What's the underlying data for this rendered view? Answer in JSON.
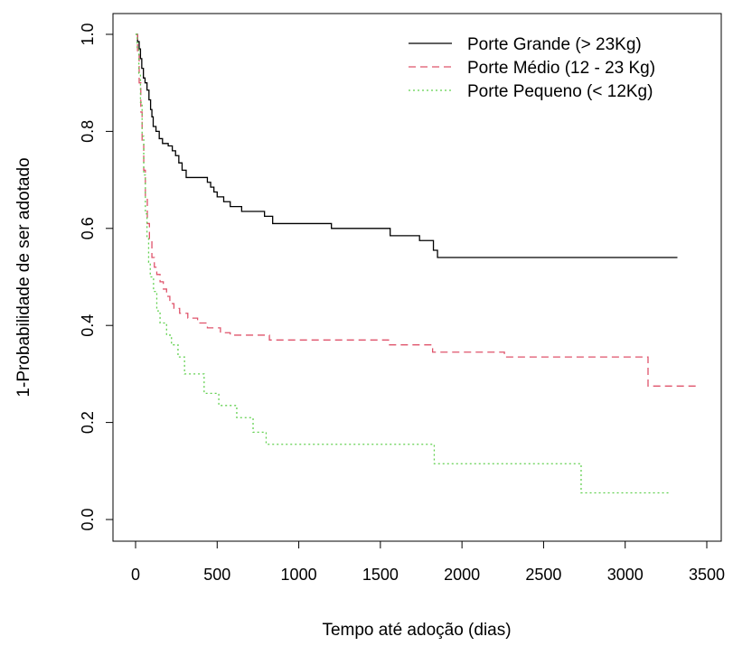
{
  "chart_data": {
    "type": "line",
    "step": true,
    "title": "",
    "xlabel": "Tempo até adoção (dias)",
    "ylabel": "1-Probabilidade de ser adotado",
    "xlim": [
      0,
      3500
    ],
    "ylim": [
      0,
      1
    ],
    "xticks": [
      0,
      500,
      1000,
      1500,
      2000,
      2500,
      3000,
      3500
    ],
    "yticks": [
      0.0,
      0.2,
      0.4,
      0.6,
      0.8,
      1.0
    ],
    "xtick_labels": [
      "0",
      "500",
      "1000",
      "1500",
      "2000",
      "2500",
      "3000",
      "3500"
    ],
    "ytick_labels": [
      "0.0",
      "0.2",
      "0.4",
      "0.6",
      "0.8",
      "1.0"
    ],
    "grid": false,
    "legend_position": "top-right",
    "series": [
      {
        "name": "Porte Grande (> 23Kg)",
        "color": "#000000",
        "dash": "solid",
        "points": [
          [
            0,
            1.0
          ],
          [
            12,
            0.985
          ],
          [
            22,
            0.97
          ],
          [
            30,
            0.95
          ],
          [
            38,
            0.93
          ],
          [
            48,
            0.91
          ],
          [
            58,
            0.9
          ],
          [
            70,
            0.885
          ],
          [
            82,
            0.865
          ],
          [
            92,
            0.845
          ],
          [
            100,
            0.83
          ],
          [
            108,
            0.81
          ],
          [
            125,
            0.8
          ],
          [
            145,
            0.785
          ],
          [
            165,
            0.775
          ],
          [
            200,
            0.77
          ],
          [
            225,
            0.76
          ],
          [
            245,
            0.75
          ],
          [
            265,
            0.735
          ],
          [
            285,
            0.72
          ],
          [
            310,
            0.705
          ],
          [
            440,
            0.695
          ],
          [
            460,
            0.685
          ],
          [
            480,
            0.675
          ],
          [
            500,
            0.665
          ],
          [
            540,
            0.655
          ],
          [
            580,
            0.645
          ],
          [
            650,
            0.635
          ],
          [
            790,
            0.625
          ],
          [
            840,
            0.61
          ],
          [
            1200,
            0.6
          ],
          [
            1560,
            0.585
          ],
          [
            1740,
            0.575
          ],
          [
            1825,
            0.555
          ],
          [
            1850,
            0.54
          ],
          [
            3320,
            0.54
          ]
        ]
      },
      {
        "name": "Porte Médio (12 - 23 Kg)",
        "color": "#DF536B",
        "dash": "dashed",
        "points": [
          [
            0,
            1.0
          ],
          [
            12,
            0.96
          ],
          [
            22,
            0.9
          ],
          [
            32,
            0.84
          ],
          [
            40,
            0.78
          ],
          [
            50,
            0.72
          ],
          [
            60,
            0.665
          ],
          [
            72,
            0.61
          ],
          [
            85,
            0.575
          ],
          [
            100,
            0.54
          ],
          [
            115,
            0.52
          ],
          [
            130,
            0.505
          ],
          [
            150,
            0.49
          ],
          [
            170,
            0.475
          ],
          [
            190,
            0.46
          ],
          [
            210,
            0.445
          ],
          [
            235,
            0.435
          ],
          [
            270,
            0.425
          ],
          [
            320,
            0.415
          ],
          [
            380,
            0.405
          ],
          [
            440,
            0.395
          ],
          [
            520,
            0.385
          ],
          [
            580,
            0.38
          ],
          [
            820,
            0.37
          ],
          [
            1550,
            0.36
          ],
          [
            1820,
            0.345
          ],
          [
            2260,
            0.335
          ],
          [
            3140,
            0.275
          ],
          [
            3440,
            0.275
          ]
        ]
      },
      {
        "name": "Porte Pequeno (< 12Kg)",
        "color": "#61D04F",
        "dash": "dotted",
        "points": [
          [
            0,
            1.0
          ],
          [
            10,
            0.97
          ],
          [
            20,
            0.92
          ],
          [
            30,
            0.86
          ],
          [
            40,
            0.79
          ],
          [
            50,
            0.71
          ],
          [
            60,
            0.63
          ],
          [
            70,
            0.58
          ],
          [
            80,
            0.53
          ],
          [
            90,
            0.5
          ],
          [
            110,
            0.47
          ],
          [
            130,
            0.43
          ],
          [
            150,
            0.405
          ],
          [
            190,
            0.38
          ],
          [
            220,
            0.36
          ],
          [
            260,
            0.335
          ],
          [
            300,
            0.3
          ],
          [
            420,
            0.26
          ],
          [
            510,
            0.235
          ],
          [
            620,
            0.21
          ],
          [
            720,
            0.18
          ],
          [
            800,
            0.155
          ],
          [
            1830,
            0.115
          ],
          [
            2730,
            0.055
          ],
          [
            3280,
            0.055
          ]
        ]
      }
    ]
  }
}
